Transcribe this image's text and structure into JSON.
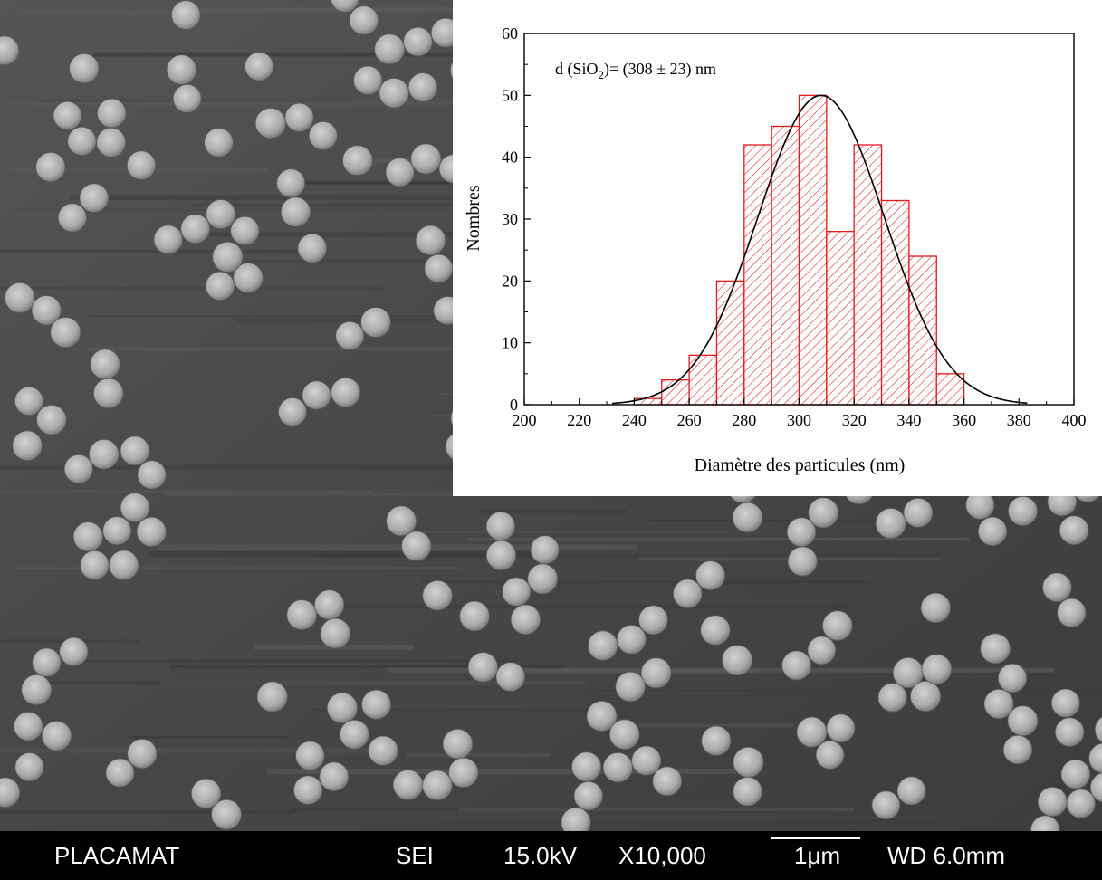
{
  "chart_data": {
    "type": "bar",
    "subtype": "histogram-with-gaussian-fit",
    "bin_edges": [
      240,
      250,
      260,
      270,
      280,
      290,
      300,
      310,
      320,
      330,
      340,
      350,
      360
    ],
    "values": [
      1,
      4,
      8,
      20,
      42,
      45,
      50,
      28,
      42,
      33,
      24,
      5
    ],
    "fit": {
      "type": "gaussian",
      "mean": 308,
      "std": 23,
      "amplitude": 50,
      "x_range": [
        232,
        383
      ]
    },
    "annotation": {
      "prefix": "d (SiO",
      "subscript": "2",
      "suffix": ")= (308 ± 23) nm"
    },
    "xlabel": "Diamètre des particules (nm)",
    "ylabel": "Nombres",
    "xlim": [
      200,
      400
    ],
    "ylim": [
      0,
      60
    ],
    "xticks": [
      200,
      220,
      240,
      260,
      280,
      300,
      320,
      340,
      360,
      380,
      400
    ],
    "yticks": [
      0,
      10,
      20,
      30,
      40,
      50,
      60
    ],
    "grid": false,
    "bar_color": "#e31a1c",
    "fill_pattern": "diagonal-hatch",
    "fit_color": "#000000"
  },
  "sem_image": {
    "background_color": "#4a4a4a",
    "particle_color": "#b8b8b8"
  },
  "info_bar": {
    "label": "PLACAMAT",
    "detector": "SEI",
    "voltage": "15.0kV",
    "magnification": "X10,000",
    "scale_label": "1μm",
    "working_distance": "WD 6.0mm"
  }
}
